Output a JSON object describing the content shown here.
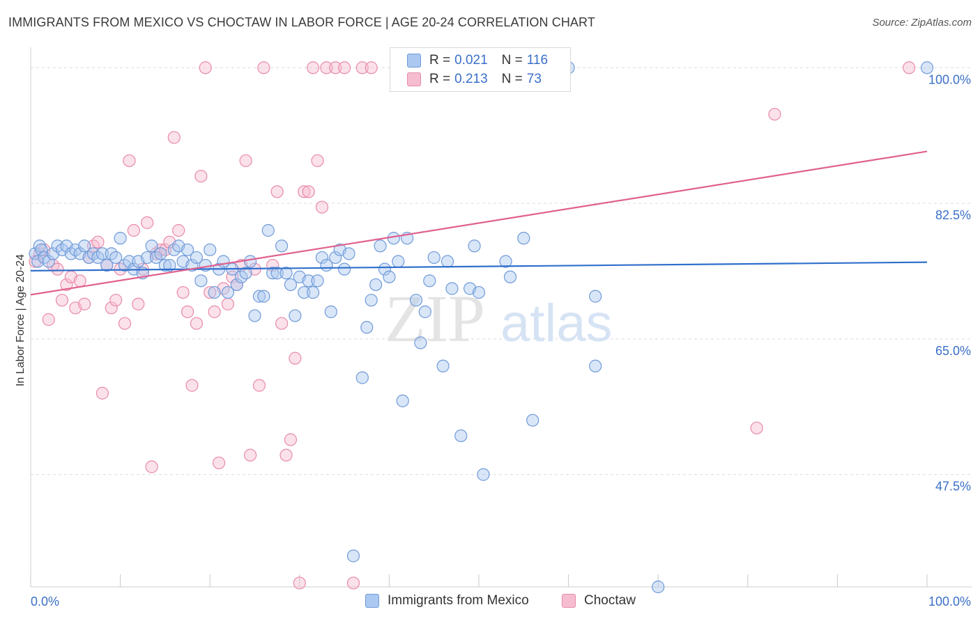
{
  "title": "IMMIGRANTS FROM MEXICO VS CHOCTAW IN LABOR FORCE | AGE 20-24 CORRELATION CHART",
  "source": "Source: ZipAtlas.com",
  "watermark": {
    "zip": "ZIP",
    "atlas": "atlas"
  },
  "colors": {
    "blue_fill": "#aac8f0",
    "blue_stroke": "#6f9ad8",
    "blue_line": "#2f6fcc",
    "pink_fill": "#f6bcd0",
    "pink_stroke": "#e88aab",
    "pink_line": "#e0608e",
    "axis_text": "#3a6fc7"
  },
  "legend": {
    "r_label": "R =",
    "n_label": "N =",
    "rows": [
      {
        "series": "Immigrants from Mexico",
        "r": "0.021",
        "n": "116"
      },
      {
        "series": "Choctaw",
        "r": "0.213",
        "n": "73"
      }
    ]
  },
  "chart_data": {
    "type": "scatter",
    "title": "IMMIGRANTS FROM MEXICO VS CHOCTAW IN LABOR FORCE | AGE 20-24 CORRELATION CHART",
    "xlabel": "",
    "ylabel": "In Labor Force | Age 20-24",
    "x_tick_labels": [
      "0.0%",
      "100.0%"
    ],
    "y_tick_labels": [
      "47.5%",
      "65.0%",
      "82.5%",
      "100.0%"
    ],
    "y_ticks": [
      47.5,
      65.0,
      82.5,
      100.0
    ],
    "xlim": [
      0,
      100
    ],
    "ylim": [
      33,
      102
    ],
    "grid": "horizontal-dashed",
    "legend_placement": "bottom",
    "series": [
      {
        "name": "Immigrants from Mexico",
        "trend": [
          [
            0,
            73.8
          ],
          [
            100,
            74.9
          ]
        ],
        "points": [
          [
            0.5,
            76
          ],
          [
            0.8,
            75
          ],
          [
            1,
            77
          ],
          [
            1.2,
            76.5
          ],
          [
            1.5,
            75.5
          ],
          [
            2,
            75
          ],
          [
            2.5,
            76
          ],
          [
            3,
            77
          ],
          [
            3.5,
            76.5
          ],
          [
            4,
            77
          ],
          [
            4.5,
            76
          ],
          [
            5,
            76.5
          ],
          [
            5.5,
            76
          ],
          [
            6,
            77
          ],
          [
            6.5,
            75.5
          ],
          [
            7,
            76
          ],
          [
            7.5,
            75.5
          ],
          [
            8,
            76
          ],
          [
            8.5,
            74.5
          ],
          [
            9,
            76
          ],
          [
            9.5,
            75.5
          ],
          [
            10,
            78
          ],
          [
            10.5,
            74.5
          ],
          [
            11,
            75
          ],
          [
            11.5,
            74
          ],
          [
            12,
            75
          ],
          [
            12.5,
            73.5
          ],
          [
            13,
            75.5
          ],
          [
            13.5,
            77
          ],
          [
            14,
            75.5
          ],
          [
            14.5,
            76
          ],
          [
            15,
            74.5
          ],
          [
            15.5,
            74.5
          ],
          [
            16,
            76.5
          ],
          [
            16.5,
            77
          ],
          [
            17,
            75
          ],
          [
            17.5,
            76.5
          ],
          [
            18,
            74.5
          ],
          [
            18.5,
            75.5
          ],
          [
            19,
            72.5
          ],
          [
            19.5,
            74.5
          ],
          [
            20,
            76.5
          ],
          [
            20.5,
            71
          ],
          [
            21,
            74
          ],
          [
            21.5,
            75
          ],
          [
            22,
            71
          ],
          [
            22.5,
            74
          ],
          [
            23,
            72
          ],
          [
            23.5,
            73
          ],
          [
            24,
            73.5
          ],
          [
            24.5,
            75
          ],
          [
            25,
            68
          ],
          [
            25.5,
            70.5
          ],
          [
            26,
            70.5
          ],
          [
            26.5,
            79
          ],
          [
            27,
            73.5
          ],
          [
            27.5,
            73.5
          ],
          [
            28,
            77
          ],
          [
            28.5,
            73.5
          ],
          [
            29,
            72
          ],
          [
            29.5,
            68
          ],
          [
            30,
            73
          ],
          [
            30.5,
            71
          ],
          [
            31,
            72.5
          ],
          [
            31.5,
            71
          ],
          [
            32,
            72.5
          ],
          [
            32.5,
            75.5
          ],
          [
            33,
            74.5
          ],
          [
            33.5,
            68.5
          ],
          [
            34,
            75.5
          ],
          [
            34.5,
            76.5
          ],
          [
            35,
            74
          ],
          [
            35.5,
            76
          ],
          [
            36,
            37
          ],
          [
            37,
            60
          ],
          [
            37.5,
            66.5
          ],
          [
            38,
            70
          ],
          [
            38.5,
            72
          ],
          [
            39,
            77
          ],
          [
            39.5,
            74
          ],
          [
            40,
            73
          ],
          [
            40.5,
            78
          ],
          [
            41,
            75
          ],
          [
            41.5,
            57
          ],
          [
            42,
            78
          ],
          [
            43,
            70
          ],
          [
            43.5,
            64.5
          ],
          [
            44,
            68.5
          ],
          [
            44.5,
            72.5
          ],
          [
            45,
            75.5
          ],
          [
            46,
            61.5
          ],
          [
            46.5,
            75
          ],
          [
            47,
            71.5
          ],
          [
            48,
            52.5
          ],
          [
            49,
            71.5
          ],
          [
            49.5,
            77
          ],
          [
            50,
            71
          ],
          [
            50.5,
            47.5
          ],
          [
            53,
            75
          ],
          [
            53.5,
            73
          ],
          [
            55,
            78
          ],
          [
            56,
            54.5
          ],
          [
            58,
            100
          ],
          [
            58,
            100
          ],
          [
            59,
            100
          ],
          [
            60,
            100
          ],
          [
            63,
            70.5
          ],
          [
            63,
            61.5
          ],
          [
            70,
            33
          ],
          [
            100,
            100
          ],
          [
            54,
            100
          ],
          [
            56,
            100
          ],
          [
            57,
            100
          ],
          [
            57.5,
            100
          ],
          [
            55.5,
            100
          ],
          [
            54.5,
            100
          ]
        ]
      },
      {
        "name": "Choctaw",
        "trend": [
          [
            0,
            70.7
          ],
          [
            100,
            89.2
          ]
        ],
        "points": [
          [
            0.5,
            75
          ],
          [
            1,
            76
          ],
          [
            1.5,
            76.5
          ],
          [
            2,
            67.5
          ],
          [
            2.5,
            74.5
          ],
          [
            3,
            74
          ],
          [
            3.5,
            70
          ],
          [
            4,
            72
          ],
          [
            4.5,
            73
          ],
          [
            5,
            69
          ],
          [
            5.5,
            72.5
          ],
          [
            6,
            69.5
          ],
          [
            6.5,
            75.5
          ],
          [
            7,
            77
          ],
          [
            7.5,
            77.5
          ],
          [
            8,
            58
          ],
          [
            8.5,
            74.5
          ],
          [
            9,
            69
          ],
          [
            9.5,
            70
          ],
          [
            10,
            74
          ],
          [
            10.5,
            67
          ],
          [
            11,
            88
          ],
          [
            11.5,
            79
          ],
          [
            12,
            69.5
          ],
          [
            12.5,
            74
          ],
          [
            13,
            80
          ],
          [
            13.5,
            48.5
          ],
          [
            14,
            76
          ],
          [
            14.5,
            76.5
          ],
          [
            15,
            76.5
          ],
          [
            15.5,
            77.5
          ],
          [
            16,
            91
          ],
          [
            16.5,
            79
          ],
          [
            17,
            71
          ],
          [
            17.5,
            68.5
          ],
          [
            18,
            59
          ],
          [
            18.5,
            67
          ],
          [
            19,
            86
          ],
          [
            19.5,
            100
          ],
          [
            20,
            71
          ],
          [
            20.5,
            68.5
          ],
          [
            21,
            49
          ],
          [
            21.5,
            71.5
          ],
          [
            22,
            69.5
          ],
          [
            22.5,
            73
          ],
          [
            23,
            72
          ],
          [
            23.5,
            74.5
          ],
          [
            24,
            88
          ],
          [
            24.5,
            50
          ],
          [
            25,
            74
          ],
          [
            25.5,
            59
          ],
          [
            26,
            100
          ],
          [
            27,
            74.5
          ],
          [
            27.5,
            84
          ],
          [
            28,
            67
          ],
          [
            28.5,
            50
          ],
          [
            29,
            52
          ],
          [
            29.5,
            62.5
          ],
          [
            30,
            33.5
          ],
          [
            30.5,
            84
          ],
          [
            31,
            84
          ],
          [
            31.5,
            100
          ],
          [
            32,
            88
          ],
          [
            32.5,
            82
          ],
          [
            33,
            100
          ],
          [
            34,
            100
          ],
          [
            35,
            100
          ],
          [
            36,
            33.5
          ],
          [
            37,
            100
          ],
          [
            38,
            100
          ],
          [
            81,
            53.5
          ],
          [
            83,
            94
          ],
          [
            98,
            100
          ]
        ]
      }
    ]
  }
}
